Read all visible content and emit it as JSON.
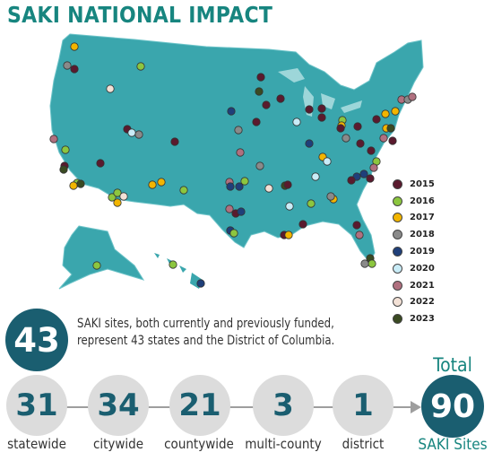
{
  "title": "SAKI NATIONAL IMPACT",
  "legend": [
    {
      "year": "2015",
      "color": "#5a1a2e"
    },
    {
      "year": "2016",
      "color": "#8cc63f"
    },
    {
      "year": "2017",
      "color": "#f2b500"
    },
    {
      "year": "2018",
      "color": "#8a8a8a"
    },
    {
      "year": "2019",
      "color": "#1f3f7a"
    },
    {
      "year": "2020",
      "color": "#c9ecf7"
    },
    {
      "year": "2021",
      "color": "#b0707f"
    },
    {
      "year": "2022",
      "color": "#f3e1d6"
    },
    {
      "year": "2023",
      "color": "#3a4a22"
    }
  ],
  "summary": {
    "states_count": "43",
    "description": "SAKI sites, both currently and previously funded, represent 43 states and the District of Columbia."
  },
  "categories": [
    {
      "value": "31",
      "label": "statewide"
    },
    {
      "value": "34",
      "label": "citywide"
    },
    {
      "value": "21",
      "label": "countywide"
    },
    {
      "value": "3",
      "label": "multi-county"
    },
    {
      "value": "1",
      "label": "district"
    }
  ],
  "total": {
    "label": "Total",
    "value": "90",
    "sublabel": "SAKI Sites"
  }
}
